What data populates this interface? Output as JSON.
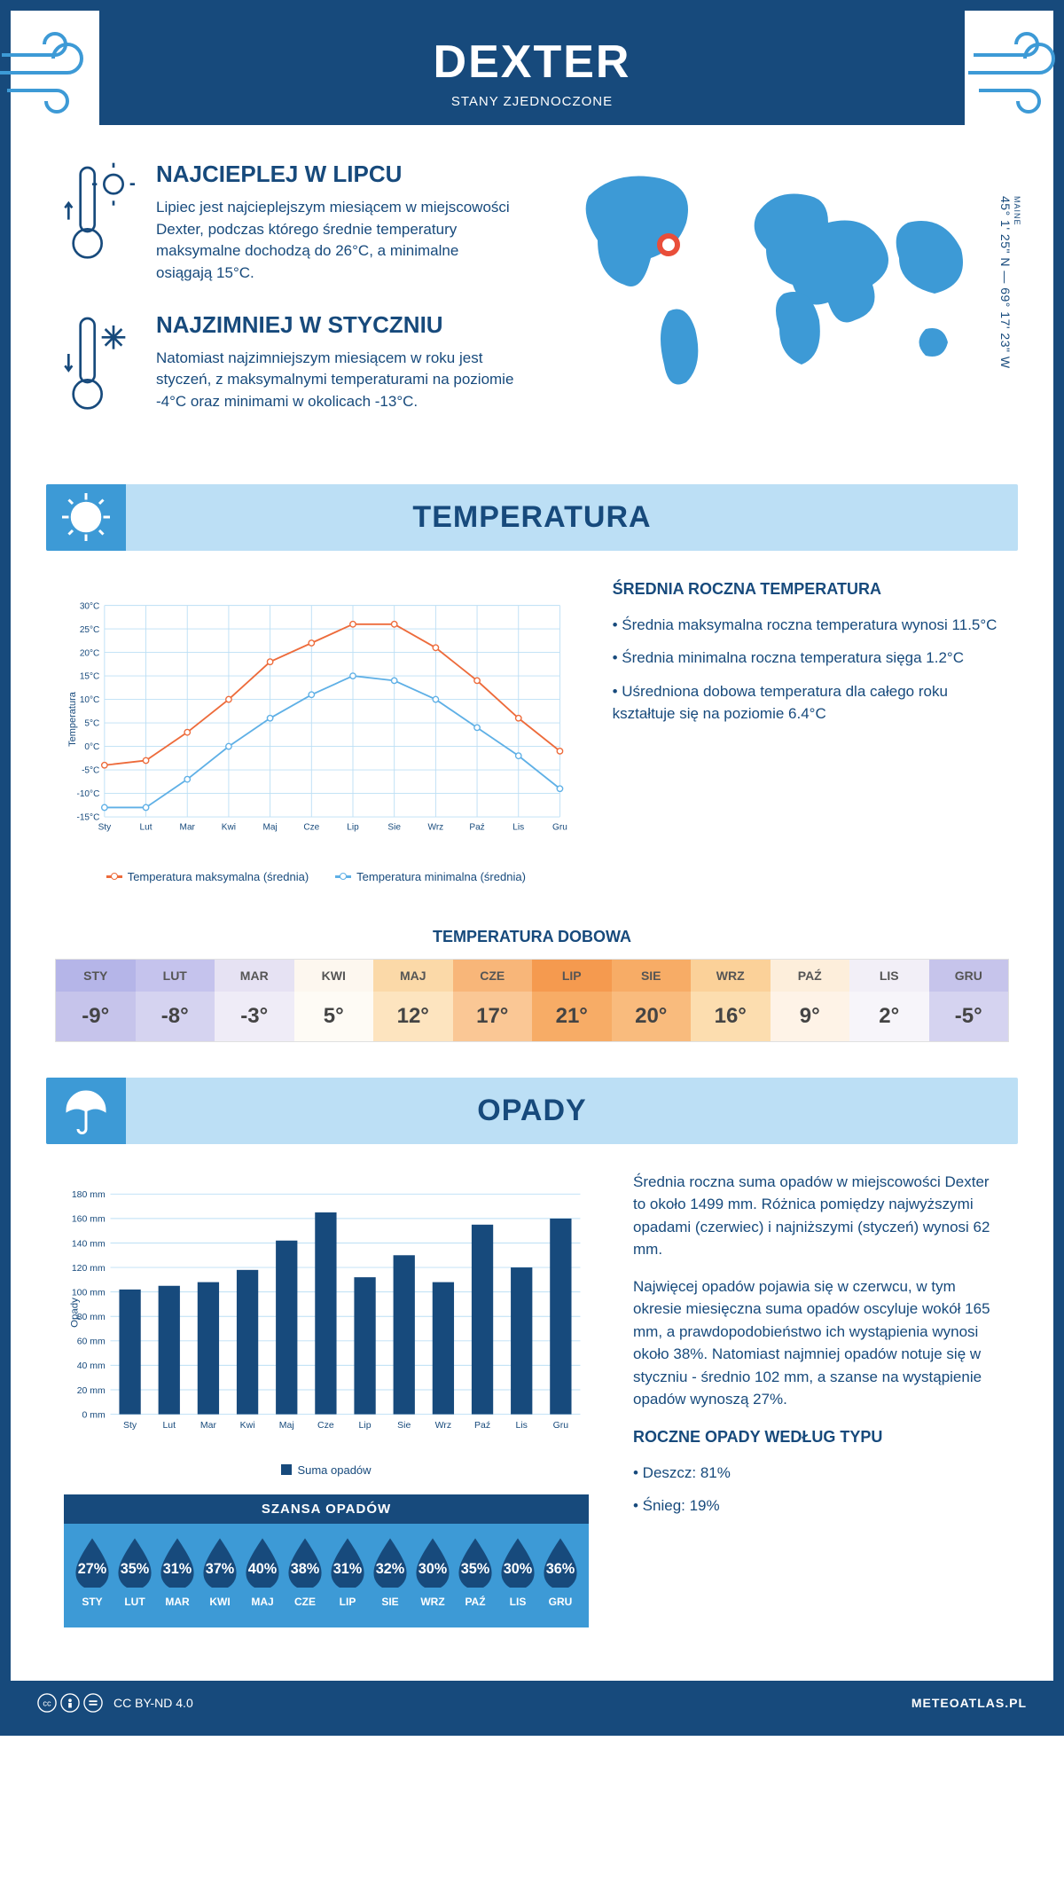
{
  "header": {
    "title": "DEXTER",
    "subtitle": "STANY ZJEDNOCZONE"
  },
  "coords": {
    "region": "MAINE",
    "text": "45° 1' 25\" N — 69° 17' 23\" W"
  },
  "hot": {
    "title": "NAJCIEPLEJ W LIPCU",
    "text": "Lipiec jest najcieplejszym miesiącem w miejscowości Dexter, podczas którego średnie temperatury maksymalne dochodzą do 26°C, a minimalne osiągają 15°C."
  },
  "cold": {
    "title": "NAJZIMNIEJ W STYCZNIU",
    "text": "Natomiast najzimniejszym miesiącem w roku jest styczeń, z maksymalnymi temperaturami na poziomie -4°C oraz minimami w okolicach -13°C."
  },
  "temp_section": {
    "banner": "TEMPERATURA",
    "stats_title": "ŚREDNIA ROCZNA TEMPERATURA",
    "stat1": "• Średnia maksymalna roczna temperatura wynosi 11.5°C",
    "stat2": "• Średnia minimalna roczna temperatura sięga 1.2°C",
    "stat3": "• Uśredniona dobowa temperatura dla całego roku kształtuje się na poziomie 6.4°C",
    "chart": {
      "y_axis_title": "Temperatura",
      "months": [
        "Sty",
        "Lut",
        "Mar",
        "Kwi",
        "Maj",
        "Cze",
        "Lip",
        "Sie",
        "Wrz",
        "Paź",
        "Lis",
        "Gru"
      ],
      "max": {
        "label": "Temperatura maksymalna (średnia)",
        "color": "#ed6b3b",
        "values": [
          -4,
          -3,
          3,
          10,
          18,
          22,
          26,
          26,
          21,
          14,
          6,
          -1
        ]
      },
      "min": {
        "label": "Temperatura minimalna (średnia)",
        "color": "#5fb0e6",
        "values": [
          -13,
          -13,
          -7,
          0,
          6,
          11,
          15,
          14,
          10,
          4,
          -2,
          -9
        ]
      },
      "y_ticks": [
        -15,
        -10,
        -5,
        0,
        5,
        10,
        15,
        20,
        25,
        30
      ],
      "ymin": -15,
      "ymax": 30,
      "grid_color": "#bcdff5"
    },
    "daily_title": "TEMPERATURA DOBOWA",
    "daily": {
      "months": [
        "STY",
        "LUT",
        "MAR",
        "KWI",
        "MAJ",
        "CZE",
        "LIP",
        "SIE",
        "WRZ",
        "PAŹ",
        "LIS",
        "GRU"
      ],
      "values": [
        "-9°",
        "-8°",
        "-3°",
        "5°",
        "12°",
        "17°",
        "21°",
        "20°",
        "16°",
        "9°",
        "2°",
        "-5°"
      ],
      "head_colors": [
        "#b5b5e8",
        "#c5c3ed",
        "#e6e2f3",
        "#fdf7ef",
        "#fbd9a8",
        "#f8b679",
        "#f59a4f",
        "#f7ac66",
        "#fbd199",
        "#fdeedb",
        "#f2eff7",
        "#c6c4eb"
      ],
      "body_colors": [
        "#c6c4eb",
        "#d5d3f0",
        "#efecf7",
        "#fefbf5",
        "#fde4bf",
        "#fac795",
        "#f7ac66",
        "#f9bb7d",
        "#fcddaf",
        "#fef3e7",
        "#f7f5fa",
        "#d5d3f0"
      ]
    }
  },
  "rain_section": {
    "banner": "OPADY",
    "para1": "Średnia roczna suma opadów w miejscowości Dexter to około 1499 mm. Różnica pomiędzy najwyższymi opadami (czerwiec) i najniższymi (styczeń) wynosi 62 mm.",
    "para2": "Najwięcej opadów pojawia się w czerwcu, w tym okresie miesięczna suma opadów oscyluje wokół 165 mm, a prawdopodobieństwo ich wystąpienia wynosi około 38%. Natomiast najmniej opadów notuje się w styczniu - średnio 102 mm, a szanse na wystąpienie opadów wynoszą 27%.",
    "chart": {
      "y_axis_title": "Opady",
      "months": [
        "Sty",
        "Lut",
        "Mar",
        "Kwi",
        "Maj",
        "Cze",
        "Lip",
        "Sie",
        "Wrz",
        "Paź",
        "Lis",
        "Gru"
      ],
      "values": [
        102,
        105,
        108,
        118,
        142,
        165,
        112,
        130,
        108,
        155,
        120,
        160
      ],
      "ymax": 180,
      "y_ticks": [
        0,
        20,
        40,
        60,
        80,
        100,
        120,
        140,
        160,
        180
      ],
      "bar_color": "#174a7c",
      "grid_color": "#bcdff5",
      "legend": "Suma opadów"
    },
    "chance": {
      "title": "SZANSA OPADÓW",
      "months": [
        "STY",
        "LUT",
        "MAR",
        "KWI",
        "MAJ",
        "CZE",
        "LIP",
        "SIE",
        "WRZ",
        "PAŹ",
        "LIS",
        "GRU"
      ],
      "values": [
        "27%",
        "35%",
        "31%",
        "37%",
        "40%",
        "38%",
        "31%",
        "32%",
        "30%",
        "35%",
        "30%",
        "36%"
      ],
      "drop_color": "#174a7c"
    },
    "type_title": "ROCZNE OPADY WEDŁUG TYPU",
    "type1": "• Deszcz: 81%",
    "type2": "• Śnieg: 19%"
  },
  "footer": {
    "license": "CC BY-ND 4.0",
    "site": "METEOATLAS.PL"
  },
  "colors": {
    "primary": "#174a7c",
    "accent": "#3d9ad6",
    "light": "#bcdff5"
  }
}
